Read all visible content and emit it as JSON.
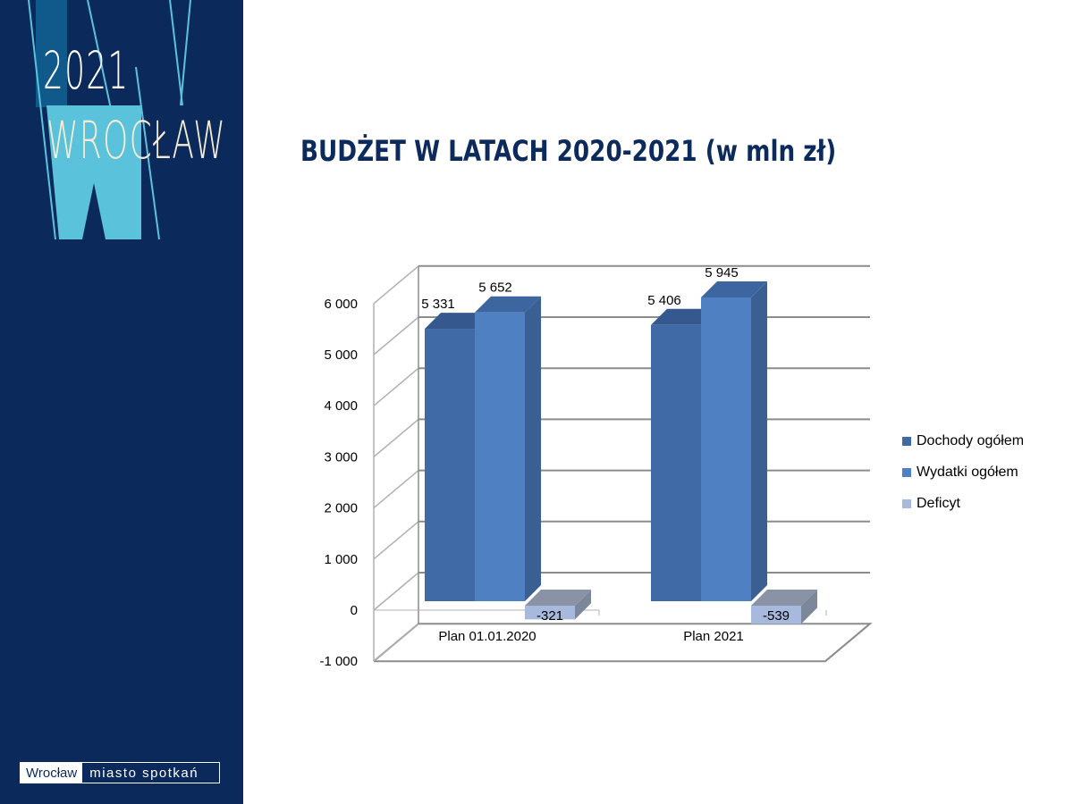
{
  "brand": {
    "year": "2021",
    "city": "WROCŁAW",
    "footer_left": "Wrocław",
    "footer_right": "miasto spotkań"
  },
  "title": "BUDŻET W LATACH 2020-2021  (w mln zł)",
  "colors": {
    "sidebar": "#0b2a5b",
    "dochody": "#3f6aa6",
    "wydatki": "#4f81c2",
    "deficyt": "#a7b9dc"
  },
  "chart_data": {
    "type": "bar",
    "categories": [
      "Plan 01.01.2020",
      "Plan 2021"
    ],
    "series": [
      {
        "name": "Dochody ogółem",
        "values": [
          5331,
          5406
        ],
        "labels": [
          "5 331",
          "5 406"
        ]
      },
      {
        "name": "Wydatki ogółem",
        "values": [
          5652,
          5945
        ],
        "labels": [
          "5 652",
          "5 945"
        ]
      },
      {
        "name": "Deficyt",
        "values": [
          -321,
          -539
        ],
        "labels": [
          "-321",
          "-539"
        ]
      }
    ],
    "ylim": [
      -1000,
      6000
    ],
    "yticks": [
      -1000,
      0,
      1000,
      2000,
      3000,
      4000,
      5000,
      6000
    ],
    "ytick_labels": [
      "-1 000",
      "0",
      "1 000",
      "2 000",
      "3 000",
      "4 000",
      "5 000",
      "6 000"
    ],
    "grid": true,
    "legend": "right",
    "style": "3d-clustered-column"
  }
}
